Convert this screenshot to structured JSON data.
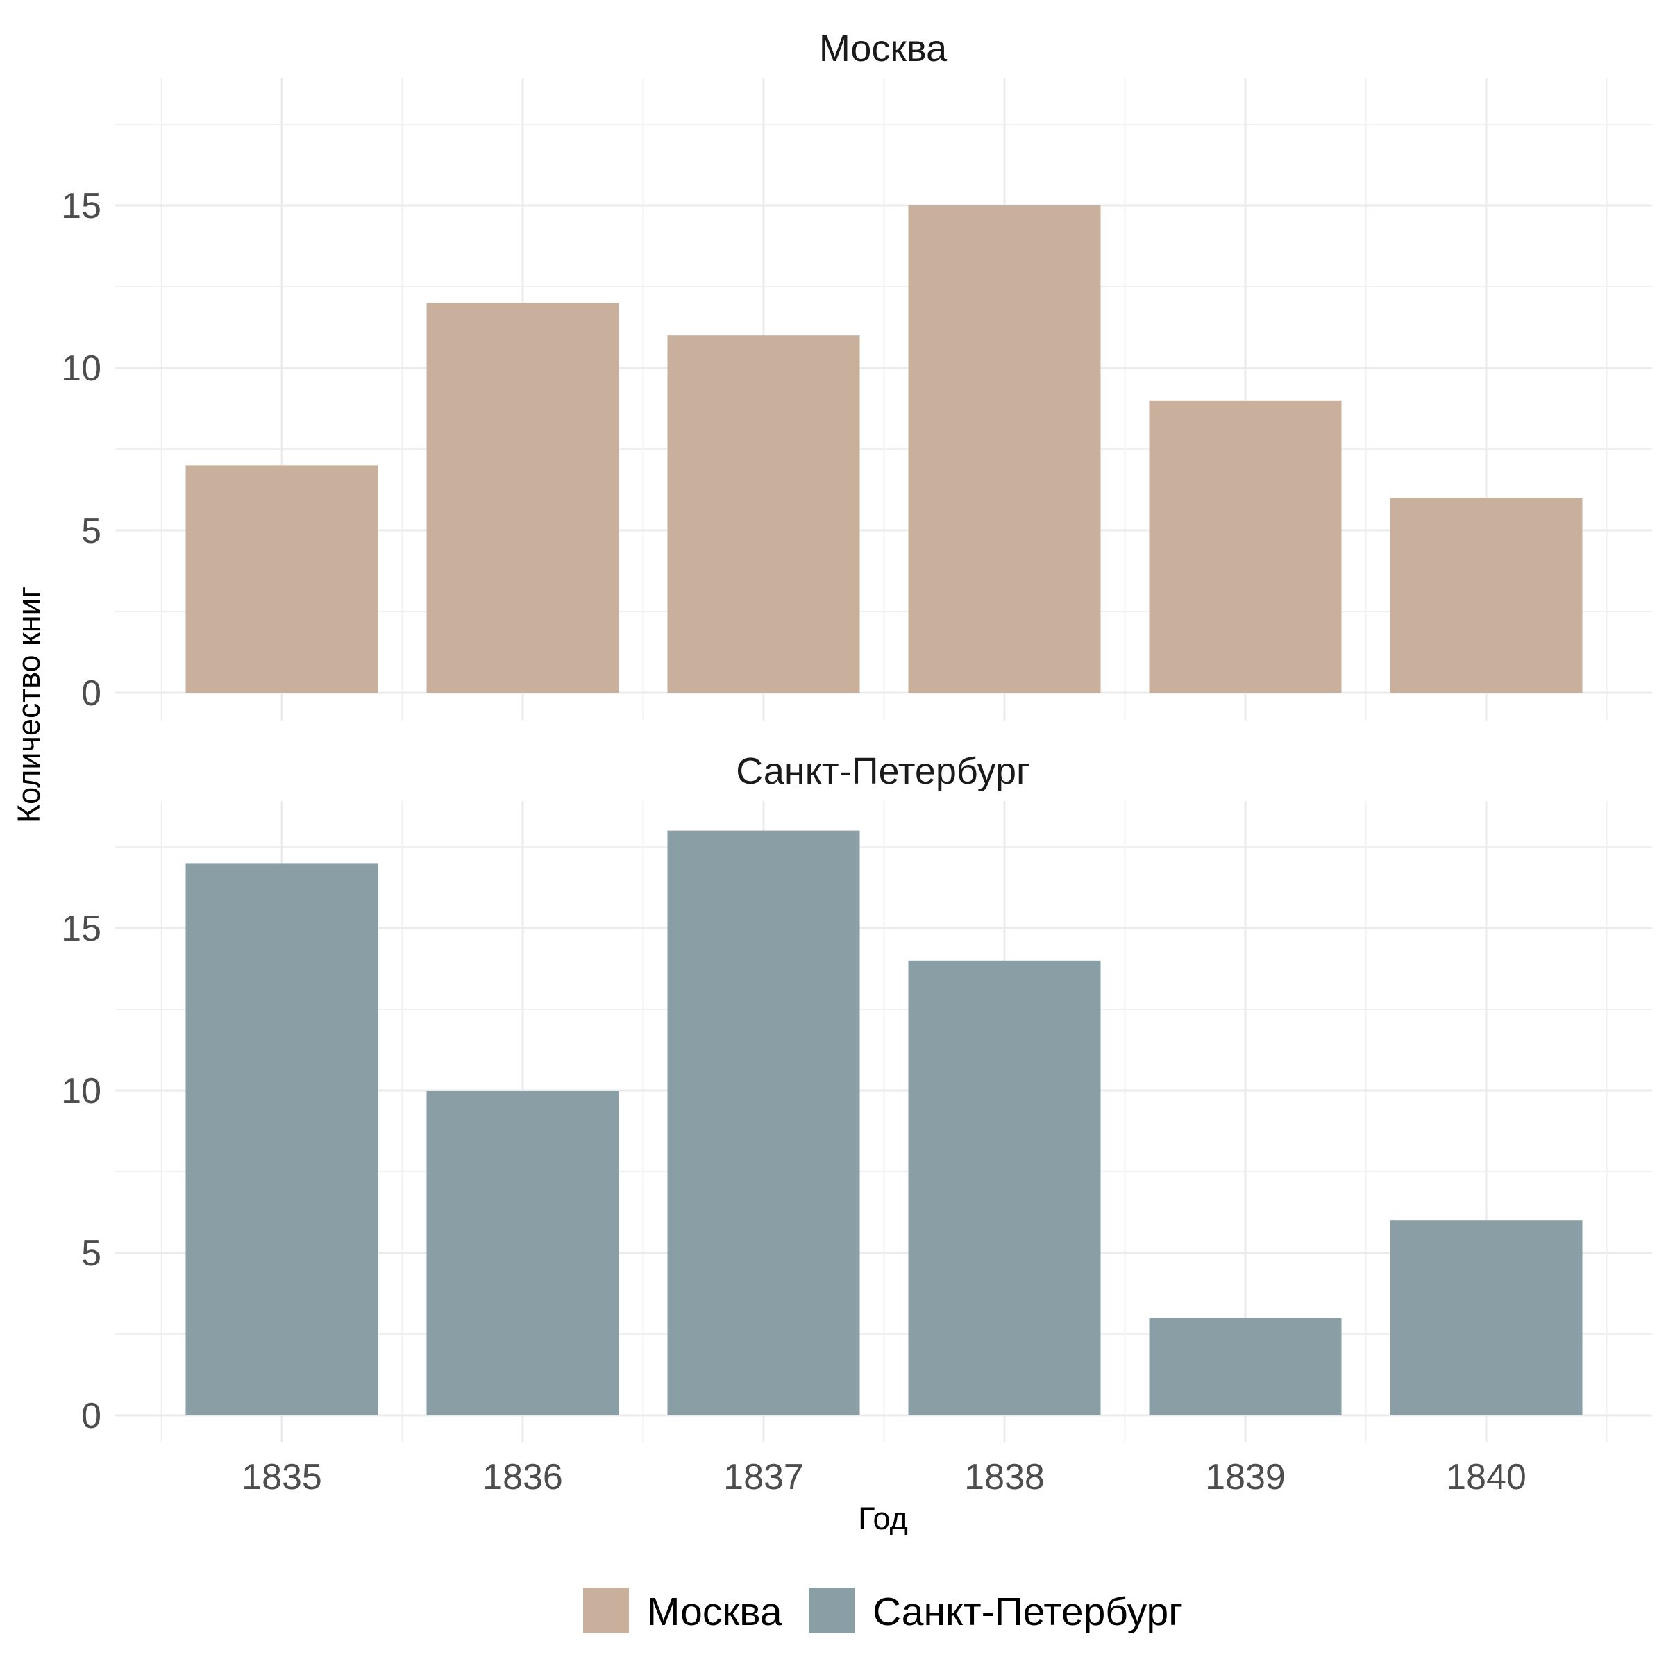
{
  "chart_data": {
    "type": "bar",
    "categories": [
      "1835",
      "1836",
      "1837",
      "1838",
      "1839",
      "1840"
    ],
    "xlabel": "Год",
    "ylabel": "Количество книг",
    "ylim": [
      0,
      18.9
    ],
    "y_ticks": [
      0,
      5,
      10,
      15
    ],
    "grid": true,
    "legend_position": "bottom",
    "panels": [
      {
        "name": "Москва",
        "color": "#c8b09d",
        "values": [
          7,
          12,
          11,
          15,
          9,
          6
        ]
      },
      {
        "name": "Санкт-Петербург",
        "color": "#8a9ea5",
        "values": [
          17,
          10,
          18,
          14,
          3,
          6
        ]
      }
    ],
    "legend": [
      {
        "label": "Москва",
        "color": "#c8b09d"
      },
      {
        "label": "Санкт-Петербург",
        "color": "#8a9ea5"
      }
    ]
  }
}
